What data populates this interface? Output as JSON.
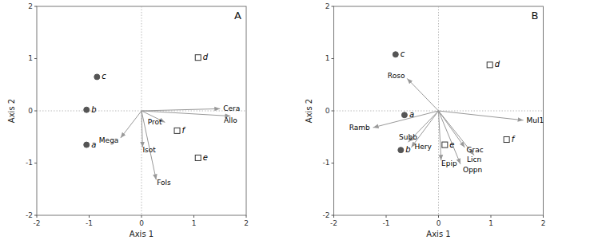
{
  "chart_data": [
    {
      "type": "biplot",
      "title": "A",
      "xlabel": "Axis 1",
      "ylabel": "Axis 2",
      "xlim": [
        -2,
        2
      ],
      "ylim": [
        -2,
        2
      ],
      "xticks": [
        -2,
        -1,
        0,
        1,
        2
      ],
      "yticks": [
        -2,
        -1,
        0,
        1,
        2
      ],
      "grid": false,
      "series": [
        {
          "type": "scatter",
          "marker": "circle",
          "color": "#555555",
          "x": [
            -1.05,
            -1.05,
            -0.85
          ],
          "values": [
            -0.65,
            0.02,
            0.65
          ],
          "labels": [
            "a",
            "b",
            "c"
          ]
        },
        {
          "type": "scatter",
          "marker": "square",
          "color": "#333333",
          "x": [
            1.08,
            0.68,
            1.08
          ],
          "values": [
            1.02,
            -0.38,
            -0.9
          ],
          "labels": [
            "d",
            "f",
            "e"
          ]
        },
        {
          "type": "vector",
          "color": "#999999",
          "x": [
            1.5,
            1.7,
            0.45,
            -0.4,
            0.02,
            0.28
          ],
          "values": [
            0.04,
            -0.1,
            -0.22,
            -0.52,
            -0.7,
            -1.32
          ],
          "labels": [
            "Cera",
            "Allo",
            "Prot",
            "Mega",
            "Isot",
            "Fols"
          ]
        }
      ]
    },
    {
      "type": "biplot",
      "title": "B",
      "xlabel": "Axis 1",
      "ylabel": "Axis 2",
      "xlim": [
        -2,
        2
      ],
      "ylim": [
        -2,
        2
      ],
      "xticks": [
        -2,
        -1,
        0,
        1,
        2
      ],
      "yticks": [
        -2,
        -1,
        0,
        1,
        2
      ],
      "grid": false,
      "series": [
        {
          "type": "scatter",
          "marker": "circle",
          "color": "#555555",
          "x": [
            -0.72,
            -0.65,
            -0.82
          ],
          "values": [
            -0.75,
            -0.08,
            1.08
          ],
          "labels": [
            "b",
            "a",
            "c"
          ]
        },
        {
          "type": "scatter",
          "marker": "square",
          "color": "#333333",
          "x": [
            0.98,
            0.12,
            1.3
          ],
          "values": [
            0.88,
            -0.65,
            -0.55
          ],
          "labels": [
            "d",
            "e",
            "f"
          ]
        },
        {
          "type": "vector",
          "color": "#999999",
          "x": [
            -0.6,
            -1.25,
            -0.58,
            -0.52,
            0.05,
            0.5,
            0.68,
            0.42,
            1.62
          ],
          "values": [
            0.62,
            -0.32,
            -0.6,
            -0.7,
            -0.95,
            -0.7,
            -0.85,
            -1.02,
            -0.18
          ],
          "labels": [
            "Roso",
            "Ramb",
            "Subb",
            "Hery",
            "Epip",
            "Grac",
            "Licn",
            "Oppn",
            "Mul1"
          ]
        }
      ]
    }
  ]
}
